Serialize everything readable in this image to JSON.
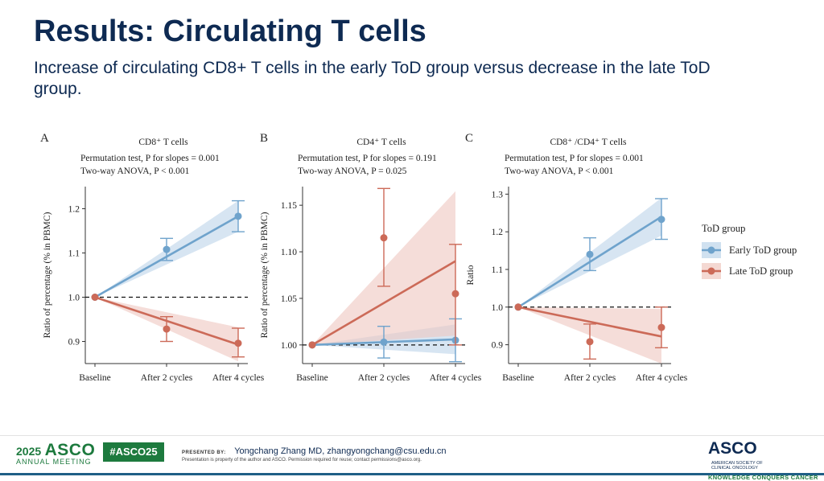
{
  "slide": {
    "title": "Results: Circulating T cells",
    "subtitle": "Increase of circulating CD8+ T cells in the early ToD group versus decrease in the late ToD group."
  },
  "colors": {
    "early": "#6fa3cc",
    "early_band": "#bcd4ea",
    "late": "#cc6a58",
    "late_band": "#efc7bf",
    "title": "#0e2a52",
    "asco_green": "#1d7a3e"
  },
  "legend": {
    "title": "ToD group",
    "items": [
      "Early ToD group",
      "Late ToD group"
    ]
  },
  "chart_data": [
    {
      "type": "line",
      "panel": "A",
      "title": "CD8⁺ T cells",
      "stats": [
        "Permutation test, P for slopes = 0.001",
        "Two-way ANOVA, P < 0.001"
      ],
      "xlabel": "",
      "ylabel": "Ratio of percentage (% in PBMC)",
      "categories": [
        "Baseline",
        "After 2 cycles",
        "After 4 cycles"
      ],
      "ylim": [
        0.85,
        1.25
      ],
      "yticks": [
        0.9,
        1.0,
        1.1,
        1.2
      ],
      "ytick_labels": [
        "0.9",
        "1.0",
        "1.1",
        "1.2"
      ],
      "reference_line": 1.0,
      "series": [
        {
          "name": "Early ToD group",
          "points": [
            1.0,
            1.108,
            1.183
          ],
          "error_low": [
            null,
            1.083,
            1.148
          ],
          "error_high": [
            null,
            1.133,
            1.218
          ],
          "fit": [
            1.0,
            1.183
          ],
          "band_low": [
            1.0,
            1.148
          ],
          "band_high": [
            1.0,
            1.218
          ]
        },
        {
          "name": "Late ToD group",
          "points": [
            1.0,
            0.928,
            0.896
          ],
          "error_low": [
            null,
            0.9,
            0.865
          ],
          "error_high": [
            null,
            0.956,
            0.93
          ],
          "fit": [
            1.0,
            0.893
          ],
          "band_low": [
            1.0,
            0.855
          ],
          "band_high": [
            1.0,
            0.932
          ]
        }
      ]
    },
    {
      "type": "line",
      "panel": "B",
      "title": "CD4⁺ T cells",
      "stats": [
        "Permutation test, P for slopes = 0.191",
        "Two-way ANOVA, P = 0.025"
      ],
      "xlabel": "",
      "ylabel": "Ratio of percentage (% in PBMC)",
      "categories": [
        "Baseline",
        "After 2 cycles",
        "After 4 cycles"
      ],
      "ylim": [
        0.98,
        1.17
      ],
      "yticks": [
        1.0,
        1.05,
        1.1,
        1.15
      ],
      "ytick_labels": [
        "1.00",
        "1.05",
        "1.10",
        "1.15"
      ],
      "reference_line": 1.0,
      "series": [
        {
          "name": "Early ToD group",
          "points": [
            1.0,
            1.003,
            1.005
          ],
          "error_low": [
            null,
            0.986,
            0.982
          ],
          "error_high": [
            null,
            1.02,
            1.028
          ],
          "fit": [
            1.0,
            1.006
          ],
          "band_low": [
            1.0,
            0.99
          ],
          "band_high": [
            1.0,
            1.022
          ]
        },
        {
          "name": "Late ToD group",
          "points": [
            1.0,
            1.115,
            1.055
          ],
          "error_low": [
            null,
            1.063,
            1.0
          ],
          "error_high": [
            null,
            1.168,
            1.108
          ],
          "fit": [
            1.0,
            1.09
          ],
          "band_low": [
            1.0,
            1.01
          ],
          "band_high": [
            1.0,
            1.165
          ]
        }
      ]
    },
    {
      "type": "line",
      "panel": "C",
      "title": "CD8⁺ /CD4⁺ T cells",
      "stats": [
        "Permutation test, P for slopes = 0.001",
        "Two-way ANOVA, P < 0.001"
      ],
      "xlabel": "",
      "ylabel": "Ratio",
      "categories": [
        "Baseline",
        "After 2 cycles",
        "After 4 cycles"
      ],
      "ylim": [
        0.85,
        1.32
      ],
      "yticks": [
        0.9,
        1.0,
        1.1,
        1.2,
        1.3
      ],
      "ytick_labels": [
        "0.9",
        "1.0",
        "1.1",
        "1.2",
        "1.3"
      ],
      "reference_line": 1.0,
      "series": [
        {
          "name": "Early ToD group",
          "points": [
            1.0,
            1.14,
            1.233
          ],
          "error_low": [
            null,
            1.097,
            1.18
          ],
          "error_high": [
            null,
            1.184,
            1.288
          ],
          "fit": [
            1.0,
            1.24
          ],
          "band_low": [
            1.0,
            1.19
          ],
          "band_high": [
            1.0,
            1.29
          ]
        },
        {
          "name": "Late ToD group",
          "points": [
            1.0,
            0.908,
            0.946
          ],
          "error_low": [
            null,
            0.862,
            0.892
          ],
          "error_high": [
            null,
            0.955,
            1.0
          ],
          "fit": [
            1.0,
            0.922
          ],
          "band_low": [
            1.0,
            0.85
          ],
          "band_high": [
            1.0,
            0.995
          ]
        }
      ]
    }
  ],
  "footer": {
    "asco_year": "2025",
    "asco_name": "ASCO",
    "asco_meeting": "ANNUAL MEETING",
    "hashtag": "#ASCO25",
    "presented_by_label": "PRESENTED BY:",
    "presenter": "Yongchang Zhang MD, zhangyongchang@csu.edu.cn",
    "permission": "Presentation is property of the author and ASCO. Permission required for reuse; contact permissions@asco.org.",
    "asco_right_logo": "ASCO",
    "asco_right_society": "AMERICAN SOCIETY OF\nCLINICAL ONCOLOGY",
    "asco_right_tagline": "KNOWLEDGE CONQUERS CANCER"
  }
}
